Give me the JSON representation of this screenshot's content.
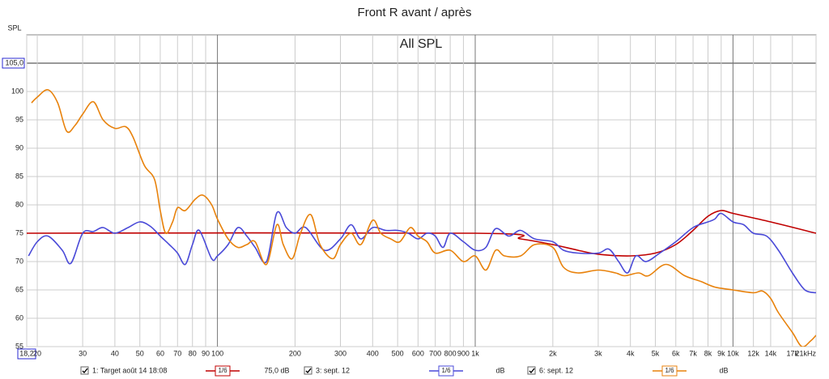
{
  "chart_data": {
    "type": "line",
    "title": "Front R avant / après",
    "subtitle": "All SPL",
    "y_label": "SPL",
    "x_scale": "log",
    "grid": true,
    "xlim": [
      18.2,
      21000
    ],
    "ylim": [
      55,
      110
    ],
    "xticks": [
      {
        "value": 18.2,
        "label": "18,2"
      },
      20,
      30,
      40,
      50,
      60,
      70,
      80,
      90,
      100,
      200,
      300,
      400,
      500,
      600,
      700,
      800,
      900,
      {
        "value": 1000,
        "label": "1k"
      },
      {
        "value": 2000,
        "label": "2k"
      },
      {
        "value": 3000,
        "label": "3k"
      },
      {
        "value": 4000,
        "label": "4k"
      },
      {
        "value": 5000,
        "label": "5k"
      },
      {
        "value": 6000,
        "label": "6k"
      },
      {
        "value": 7000,
        "label": "7k"
      },
      {
        "value": 8000,
        "label": "8k"
      },
      {
        "value": 9000,
        "label": "9k"
      },
      {
        "value": 10000,
        "label": "10k"
      },
      {
        "value": 12000,
        "label": "12k"
      },
      {
        "value": 14000,
        "label": "14k"
      },
      {
        "value": 17000,
        "label": "17k"
      },
      {
        "value": 21000,
        "label": "21kHz"
      }
    ],
    "yticks": [
      55,
      60,
      65,
      70,
      75,
      80,
      85,
      90,
      95,
      100,
      {
        "value": 105,
        "label": "105,0"
      }
    ],
    "series": [
      {
        "name": "1: Target août 14 18:08",
        "color": "#c00000",
        "smoothing": "1/6",
        "level": "75,0 dB",
        "x": [
          18.2,
          1000,
          1500,
          2000,
          2500,
          3000,
          4000,
          5000,
          6000,
          7000,
          8000,
          9000,
          10000,
          14000,
          21000
        ],
        "values": [
          75,
          75,
          74,
          73,
          72,
          71.3,
          71,
          71.5,
          73,
          75.5,
          78,
          79,
          78.5,
          77,
          75
        ]
      },
      {
        "name": "3: sept. 12",
        "color": "#4a4ad8",
        "smoothing": "1/6",
        "level": "dB",
        "x": [
          18.5,
          20,
          22,
          25,
          27,
          30,
          33,
          36,
          40,
          45,
          50,
          55,
          60,
          65,
          70,
          75,
          80,
          85,
          95,
          100,
          110,
          120,
          130,
          140,
          155,
          170,
          185,
          200,
          220,
          260,
          300,
          330,
          360,
          400,
          450,
          500,
          550,
          600,
          650,
          700,
          750,
          800,
          900,
          1000,
          1100,
          1200,
          1350,
          1500,
          1700,
          2000,
          2200,
          2500,
          3000,
          3300,
          3600,
          3900,
          4200,
          4600,
          5200,
          6000,
          7000,
          8000,
          8500,
          9000,
          10000,
          11000,
          12000,
          13500,
          15000,
          17000,
          19000,
          21000
        ],
        "values": [
          71,
          73.5,
          74.5,
          72,
          69.7,
          75,
          75.3,
          76,
          75,
          76,
          77,
          76.2,
          74.5,
          73,
          71.5,
          69.5,
          73,
          75.5,
          70.5,
          71,
          73,
          76,
          74.5,
          72.5,
          70,
          78.6,
          76,
          75,
          76,
          72,
          74,
          76.5,
          74,
          76,
          75.5,
          75.5,
          75,
          74,
          75,
          74.5,
          72.5,
          75,
          73.5,
          72,
          72.5,
          75.8,
          74.5,
          75.5,
          74,
          73.5,
          72,
          71.5,
          71.5,
          72.2,
          70,
          68,
          71,
          70,
          71.5,
          73.5,
          76,
          77,
          77.5,
          78.5,
          77,
          76.5,
          75,
          74.5,
          72,
          68,
          65,
          64.5
        ]
      },
      {
        "name": "6: sept. 12",
        "color": "#e8820c",
        "smoothing": "1/6",
        "level": "dB",
        "x": [
          19,
          20,
          22,
          24,
          26,
          28,
          30,
          33,
          36,
          40,
          44,
          47,
          52,
          57,
          60,
          63,
          67,
          70,
          75,
          82,
          88,
          95,
          100,
          110,
          120,
          130,
          140,
          155,
          170,
          180,
          195,
          210,
          230,
          250,
          280,
          300,
          330,
          360,
          400,
          430,
          470,
          510,
          560,
          600,
          650,
          700,
          800,
          900,
          1000,
          1100,
          1200,
          1300,
          1500,
          1700,
          2000,
          2200,
          2500,
          3000,
          3500,
          3800,
          4300,
          4700,
          5500,
          6500,
          7500,
          8500,
          10000,
          12000,
          13000,
          14000,
          15000,
          17000,
          18500,
          20000,
          21000
        ],
        "values": [
          98,
          99,
          100.3,
          98,
          93,
          94,
          96,
          98.2,
          95,
          93.5,
          93.8,
          92,
          87,
          84.5,
          79,
          75,
          77,
          79.5,
          79,
          81,
          81.7,
          80,
          77.5,
          74,
          72.5,
          73,
          73.5,
          69.5,
          76.5,
          73,
          70.5,
          75,
          78.3,
          73,
          70.5,
          73,
          75,
          73,
          77.3,
          75,
          74,
          73.5,
          76,
          74.5,
          73.5,
          71.5,
          72,
          70,
          71,
          68.5,
          72,
          71,
          71,
          73,
          72.5,
          69,
          68,
          68.5,
          68,
          67.5,
          68,
          67.5,
          69.5,
          67.5,
          66.5,
          65.5,
          65,
          64.5,
          64.8,
          63.5,
          61,
          57.5,
          55,
          56,
          57
        ]
      }
    ]
  }
}
